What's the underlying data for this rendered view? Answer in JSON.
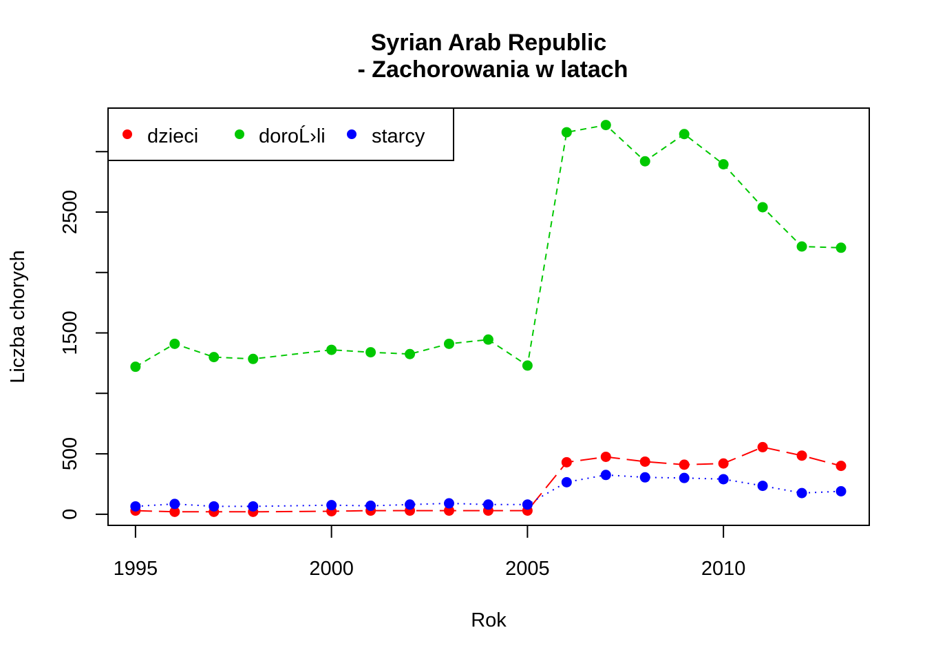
{
  "chart_data": {
    "type": "line",
    "title": "Syrian Arab Republic",
    "subtitle": "- Zachorowania w latach",
    "xlabel": "Rok",
    "ylabel": "Liczba chorych",
    "xlim": [
      1994.3,
      2013.72
    ],
    "ylim": [
      -92,
      3360
    ],
    "xticks": [
      1995,
      2000,
      2005,
      2010
    ],
    "yticks": [
      0,
      500,
      1500,
      2500
    ],
    "x_tick_labels": [
      "1995",
      "2000",
      "2005",
      "2010"
    ],
    "y_tick_labels": [
      "0",
      "500",
      "1500",
      "2500"
    ],
    "x": [
      1995,
      1996,
      1997,
      1998,
      2000,
      2001,
      2002,
      2003,
      2004,
      2005,
      2006,
      2007,
      2008,
      2009,
      2010,
      2011,
      2012,
      2013
    ],
    "series": [
      {
        "name": "dzieci",
        "color": "#ff0000",
        "line_style": "long-dash",
        "values": [
          30,
          20,
          20,
          20,
          25,
          30,
          30,
          30,
          30,
          30,
          430,
          475,
          435,
          410,
          420,
          555,
          485,
          400
        ]
      },
      {
        "name": "doroĹ›li",
        "color": "#00c800",
        "line_style": "dashed",
        "values": [
          1220,
          1410,
          1300,
          1285,
          1360,
          1340,
          1325,
          1410,
          1445,
          1230,
          3160,
          3220,
          2920,
          3145,
          2895,
          2540,
          2215,
          2205
        ]
      },
      {
        "name": "starcy",
        "color": "#0000ff",
        "line_style": "dotted",
        "values": [
          65,
          85,
          65,
          65,
          75,
          70,
          80,
          90,
          80,
          80,
          265,
          325,
          305,
          300,
          290,
          235,
          175,
          190
        ]
      }
    ],
    "legend_position": "top-left",
    "grid": false
  }
}
